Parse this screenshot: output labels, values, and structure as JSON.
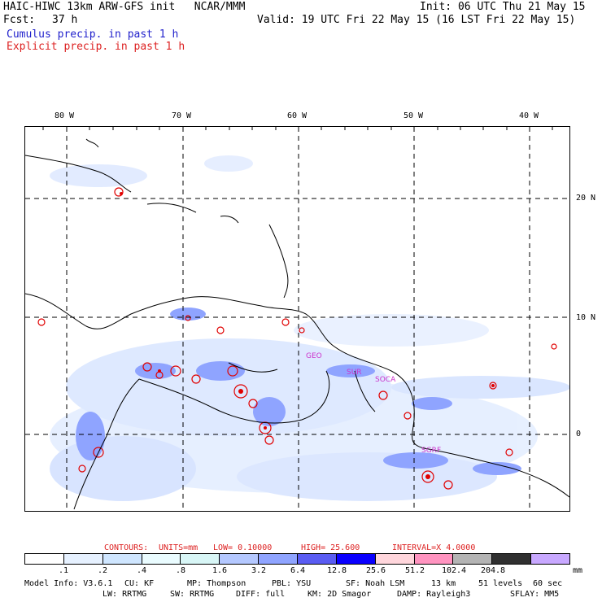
{
  "header": {
    "model_title": "HAIC-HIWC 13km ARW-GFS init   NCAR/MMM",
    "init": "Init: 06 UTC Thu 21 May 15",
    "fcst_label": "Fcst:",
    "fcst_value": "37 h",
    "valid": "Valid: 19 UTC Fri 22 May 15 (16 LST Fri 22 May 15)",
    "cumulus": "Cumulus precip. in past 1 h",
    "explicit": "Explicit precip. in past 1 h"
  },
  "map": {
    "lon_labels": [
      "80 W",
      "70 W",
      "60 W",
      "50 W",
      "40 W"
    ],
    "lat_labels": [
      "20 N",
      "10 N",
      "0"
    ],
    "place_labels": [
      "GEO",
      "SUR",
      "SOCA",
      "SGRF"
    ]
  },
  "contours_line": {
    "label": "CONTOURS:",
    "units": "UNITS=mm",
    "low": "LOW= 0.10000",
    "high": "HIGH= 25.600",
    "interval": "INTERVAL=X 4.0000"
  },
  "legend": {
    "colors": [
      "#ffffff",
      "#e6f1ff",
      "#cfe6ff",
      "#eafcff",
      "#d8f6f6",
      "#b4c8ff",
      "#8fa4ff",
      "#5a5cf2",
      "#0a00ff",
      "#ffd6dc",
      "#ff94c0",
      "#b4b4b4",
      "#303030",
      "#c8a8ff"
    ],
    "labels": [
      ".1",
      ".2",
      ".4",
      ".8",
      "1.6",
      "3.2",
      "6.4",
      "12.8",
      "25.6",
      "51.2",
      "102.4",
      "204.8"
    ],
    "unit": "mm"
  },
  "footer": {
    "line1": [
      "Model Info: V3.6.1",
      "CU: KF",
      "MP: Thompson",
      "PBL: YSU",
      "SF: Noah LSM",
      "13 km",
      "51 levels",
      "60 sec"
    ],
    "line2": [
      "LW: RRTMG",
      "SW: RRTMG",
      "DIFF: full",
      "KM: 2D Smagor",
      "DAMP: Rayleigh3",
      "SFLAY: MM5"
    ]
  }
}
